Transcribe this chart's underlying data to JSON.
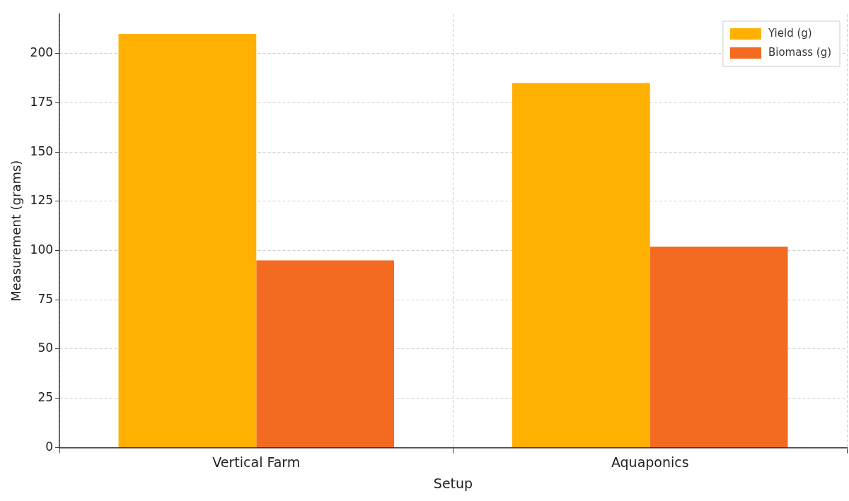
{
  "chart_data": {
    "type": "bar",
    "xlabel": "Setup",
    "ylabel": "Measurement (grams)",
    "categories": [
      "Vertical Farm",
      "Aquaponics"
    ],
    "series": [
      {
        "name": "Yield (g)",
        "color": "#ffb000",
        "values": [
          210,
          185
        ]
      },
      {
        "name": "Biomass (g)",
        "color": "#f26b21",
        "values": [
          95,
          102
        ]
      }
    ],
    "ylim": [
      0,
      220
    ],
    "yticks": [
      0,
      25,
      50,
      75,
      100,
      125,
      150,
      175,
      200
    ],
    "grid": true,
    "legend": "top right"
  }
}
